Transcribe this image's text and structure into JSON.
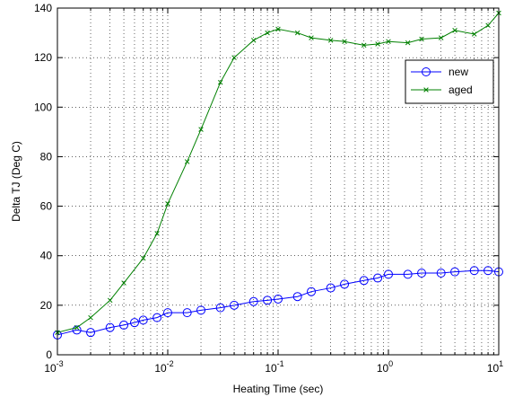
{
  "chart_data": {
    "type": "line",
    "title": "",
    "xlabel": "Heating Time (sec)",
    "ylabel": "Delta TJ (Deg C)",
    "xscale": "log",
    "xlim": [
      0.001,
      10
    ],
    "ylim": [
      0,
      140
    ],
    "grid": "on (dotted, major and minor)",
    "legend_position": "top-right",
    "x_ticks": [
      {
        "base": "10",
        "exp": "-3",
        "value": 0.001
      },
      {
        "base": "10",
        "exp": "-2",
        "value": 0.01
      },
      {
        "base": "10",
        "exp": "-1",
        "value": 0.1
      },
      {
        "base": "10",
        "exp": "0",
        "value": 1
      },
      {
        "base": "10",
        "exp": "1",
        "value": 10
      }
    ],
    "y_ticks": [
      "0",
      "20",
      "40",
      "60",
      "80",
      "100",
      "120",
      "140"
    ],
    "series": [
      {
        "name": "new",
        "color": "#0000ff",
        "marker": "circle",
        "x": [
          0.001,
          0.0015,
          0.002,
          0.003,
          0.004,
          0.005,
          0.006,
          0.008,
          0.01,
          0.015,
          0.02,
          0.03,
          0.04,
          0.06,
          0.08,
          0.1,
          0.15,
          0.2,
          0.3,
          0.4,
          0.6,
          0.8,
          1,
          1.5,
          2,
          3,
          4,
          6,
          8,
          10
        ],
        "y": [
          8,
          10,
          9,
          11,
          12,
          13,
          14,
          15,
          17,
          17,
          18,
          19,
          20,
          21.5,
          22,
          22.5,
          23.5,
          25.5,
          27,
          28.5,
          30,
          31,
          32.5,
          32.5,
          33,
          33,
          33.5,
          34,
          34,
          33.5
        ]
      },
      {
        "name": "aged",
        "color": "#008000",
        "marker": "x",
        "x": [
          0.001,
          0.0015,
          0.002,
          0.003,
          0.004,
          0.006,
          0.008,
          0.01,
          0.015,
          0.02,
          0.03,
          0.04,
          0.06,
          0.08,
          0.1,
          0.15,
          0.2,
          0.3,
          0.4,
          0.6,
          0.8,
          1,
          1.5,
          2,
          3,
          4,
          6,
          8,
          10
        ],
        "y": [
          9,
          11,
          15,
          22,
          29,
          39,
          49,
          61,
          78,
          91,
          110,
          120,
          127,
          130,
          131.5,
          130,
          128,
          127,
          126.5,
          125,
          125.5,
          126.5,
          126,
          127.5,
          128,
          131,
          129.5,
          133,
          138
        ]
      }
    ]
  }
}
